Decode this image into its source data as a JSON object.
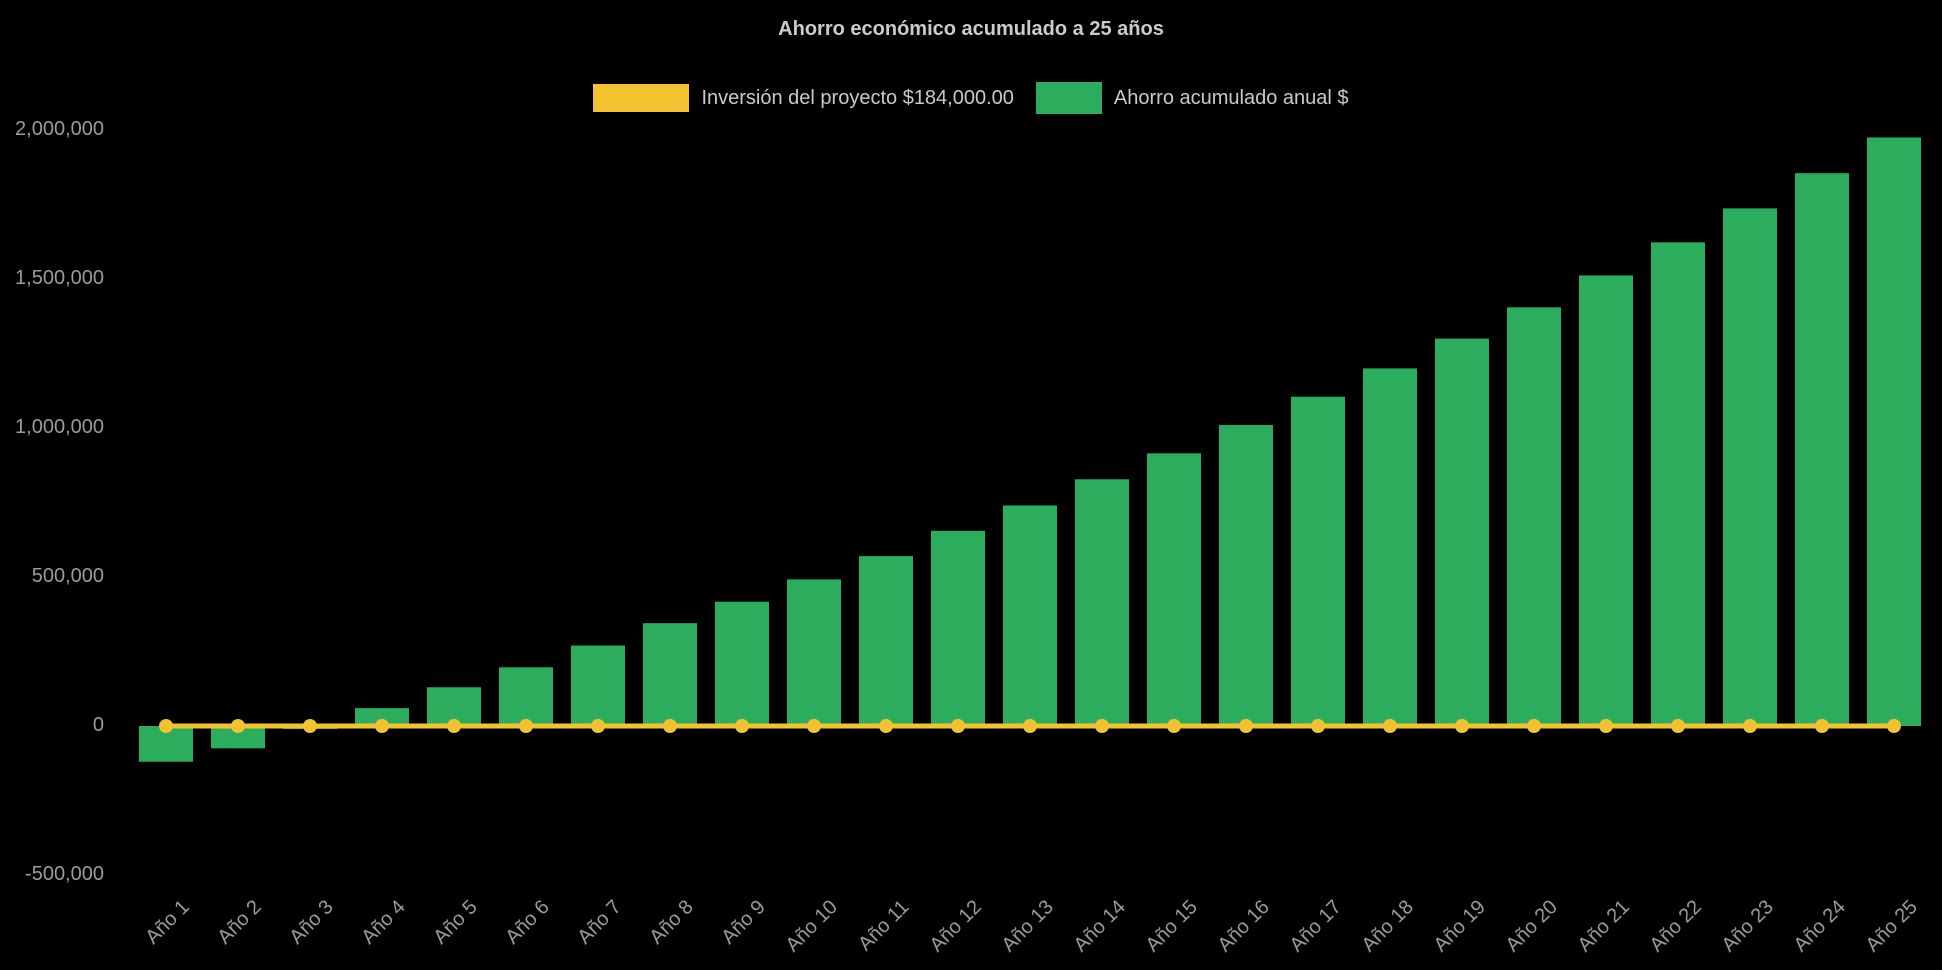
{
  "title": "Ahorro económico acumulado a 25 años",
  "colors": {
    "background": "#000000",
    "bar_green": "#2CAD5E",
    "line_yellow": "#F2C230",
    "title_text": "#cbcbcb",
    "axis_text": "#9b9b9b"
  },
  "legend": {
    "items": [
      {
        "label": "Inversión del proyecto $184,000.00",
        "color": "#F2C230",
        "marker": "line"
      },
      {
        "label": "Ahorro acumulado anual $",
        "color": "#2CAD5E",
        "marker": "column"
      }
    ]
  },
  "chart_data": {
    "type": "bar",
    "title": "Ahorro económico acumulado a 25 años",
    "categories": [
      "Año 1",
      "Año 2",
      "Año 3",
      "Año 4",
      "Año 5",
      "Año 6",
      "Año 7",
      "Año 8",
      "Año 9",
      "Año 10",
      "Año 11",
      "Año 12",
      "Año 13",
      "Año 14",
      "Año 15",
      "Año 16",
      "Año 17",
      "Año 18",
      "Año 19",
      "Año 20",
      "Año 21",
      "Año 22",
      "Año 23",
      "Año 24",
      "Año 25"
    ],
    "series": [
      {
        "name": "Ahorro acumulado anual $",
        "type": "bar",
        "color": "#2CAD5E",
        "values": [
          -120000,
          -75000,
          -10000,
          60000,
          130000,
          197000,
          270000,
          345000,
          417000,
          492000,
          570000,
          655000,
          740000,
          828000,
          915000,
          1010000,
          1105000,
          1200000,
          1300000,
          1405000,
          1512000,
          1623000,
          1737000,
          1855000,
          1975000
        ]
      },
      {
        "name": "Inversión del proyecto $184,000.00",
        "type": "line",
        "color": "#F2C230",
        "values": [
          0,
          0,
          0,
          0,
          0,
          0,
          0,
          0,
          0,
          0,
          0,
          0,
          0,
          0,
          0,
          0,
          0,
          0,
          0,
          0,
          0,
          0,
          0,
          0,
          0
        ]
      }
    ],
    "xlabel": "",
    "ylabel": "",
    "ylim": [
      -500000,
      2083000
    ],
    "yticks": [
      -500000,
      0,
      500000,
      1000000,
      1500000,
      2000000
    ],
    "grid": false,
    "legend_position": "top"
  }
}
